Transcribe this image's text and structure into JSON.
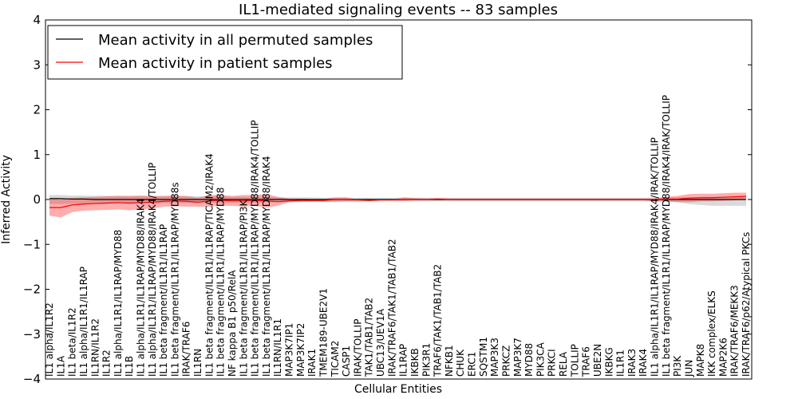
{
  "chart_data": {
    "type": "line",
    "title": "IL1-mediated signaling events -- 83 samples",
    "xlabel": "Cellular Entities",
    "ylabel": "Inferred Activity",
    "ylim": [
      -4,
      4
    ],
    "yticks": [
      -4,
      -3,
      -2,
      -1,
      0,
      1,
      2,
      3,
      4
    ],
    "legend_position": "upper-left",
    "categories": [
      "IL1 alpha/IL1R2",
      "IL1A",
      "IL1 beta/IL1R2",
      "IL1 alpha/IL1R1/IL1RAP",
      "IL1RN/IL1R2",
      "IL1R2",
      "IL1 alpha/IL1R1/IL1RAP/MYD88",
      "IL1B",
      "IL1 alpha/IL1R1/IL1RAP/MYD88/IRAK4",
      "IL1 alpha/IL1R1/IL1RAP/MYD88/IRAK4/TOLLIP",
      "IL1 beta fragment/IL1R1/IL1RAP",
      "IL1 beta fragment/IL1R1/IL1RAP/MYD88s",
      "IRAK/TRAF6",
      "IL1RN",
      "IL1 beta fragment/IL1R1/IL1RAP/TICAM2/IRAK4",
      "IL1 beta fragment/IL1R1/IL1RAP/MYD88",
      "NF kappa B1 p50/RelA",
      "IL1 beta fragment/IL1R1/IL1RAP/PI3K",
      "IL1 beta fragment/IL1R1/IL1RAP/MYD88/IRAK4/TOLLIP",
      "IL1 beta fragment/IL1R1/IL1RAP/MYD88/IRAK4",
      "IL1RN/IL1R1",
      "MAP3K7IP1",
      "MAP3K7IP2",
      "IRAK1",
      "TMEM189-UBE2V1",
      "TICAM2",
      "CASP1",
      "IRAK/TOLLIP",
      "TAK1/TAB1/TAB2",
      "UBC13/UEV1A",
      "IRAK/TRAF6/TAK1/TAB1/TAB2",
      "IL1RAP",
      "IKBKB",
      "PIK3R1",
      "TRAF6/TAK1/TAB1/TAB2",
      "NFKB1",
      "CHUK",
      "ERC1",
      "SQSTM1",
      "MAP3K3",
      "PRKCZ",
      "MAP3K7",
      "MYD88",
      "PIK3CA",
      "PRKCI",
      "RELA",
      "TOLLIP",
      "TRAF6",
      "UBE2N",
      "IKBKG",
      "IL1R1",
      "IRAK3",
      "IRAK4",
      "IL1 alpha/IL1R1/IL1RAP/MYD88/IRAK4/IRAK/TOLLIP",
      "IL1 beta fragment/IL1R1/IL1RAP/MYD88/IRAK4/IRAK/TOLLIP",
      "PI3K",
      "JUN",
      "MAPK8",
      "IKK complex/ELKS",
      "MAP2K6",
      "IRAK/TRAF6/MEKK3",
      "IRAK/TRAF6/p62/Atypical PKCs"
    ],
    "series": [
      {
        "name": "Mean activity in all permuted samples",
        "color": "#000000",
        "values": [
          0.02,
          0.02,
          0.01,
          0.01,
          0.0,
          0.0,
          0.0,
          0.0,
          0.0,
          0.0,
          0.0,
          0.0,
          0.0,
          0.0,
          0.0,
          0.0,
          0.0,
          0.0,
          0.0,
          0.0,
          0.0,
          0.0,
          0.0,
          0.0,
          0.0,
          0.0,
          0.0,
          0.0,
          0.0,
          0.0,
          0.0,
          0.0,
          0.0,
          0.0,
          0.0,
          0.0,
          0.0,
          0.0,
          0.0,
          0.0,
          0.0,
          0.0,
          0.0,
          0.0,
          0.0,
          0.0,
          0.0,
          0.0,
          0.0,
          0.0,
          0.0,
          0.0,
          0.0,
          0.0,
          0.0,
          0.0,
          0.0,
          0.0,
          0.0,
          0.0,
          0.0,
          0.0
        ],
        "band_upper": [
          0.1,
          0.1,
          0.09,
          0.09,
          0.08,
          0.08,
          0.08,
          0.07,
          0.07,
          0.07,
          0.07,
          0.07,
          0.07,
          0.07,
          0.07,
          0.07,
          0.06,
          0.06,
          0.06,
          0.06,
          0.05,
          0.05,
          0.05,
          0.05,
          0.04,
          0.04,
          0.04,
          0.04,
          0.04,
          0.04,
          0.04,
          0.04,
          0.04,
          0.04,
          0.04,
          0.04,
          0.04,
          0.04,
          0.04,
          0.04,
          0.04,
          0.04,
          0.04,
          0.04,
          0.04,
          0.04,
          0.04,
          0.04,
          0.04,
          0.04,
          0.04,
          0.04,
          0.04,
          0.05,
          0.05,
          0.05,
          0.05,
          0.05,
          0.06,
          0.06,
          0.06,
          0.06
        ],
        "band_lower": [
          -0.1,
          -0.1,
          -0.09,
          -0.09,
          -0.08,
          -0.08,
          -0.08,
          -0.08,
          -0.08,
          -0.08,
          -0.08,
          -0.08,
          -0.08,
          -0.08,
          -0.08,
          -0.08,
          -0.07,
          -0.07,
          -0.07,
          -0.07,
          -0.06,
          -0.06,
          -0.06,
          -0.05,
          -0.05,
          -0.05,
          -0.05,
          -0.05,
          -0.05,
          -0.04,
          -0.04,
          -0.04,
          -0.04,
          -0.04,
          -0.04,
          -0.04,
          -0.04,
          -0.04,
          -0.04,
          -0.04,
          -0.04,
          -0.04,
          -0.04,
          -0.04,
          -0.04,
          -0.04,
          -0.04,
          -0.04,
          -0.04,
          -0.04,
          -0.04,
          -0.04,
          -0.04,
          -0.05,
          -0.05,
          -0.06,
          -0.1,
          -0.12,
          -0.14,
          -0.14,
          -0.14,
          -0.14
        ]
      },
      {
        "name": "Mean activity in patient samples",
        "color": "#ff0000",
        "values": [
          -0.18,
          -0.18,
          -0.12,
          -0.1,
          -0.09,
          -0.08,
          -0.07,
          -0.08,
          -0.07,
          -0.06,
          -0.04,
          -0.03,
          -0.04,
          -0.06,
          -0.03,
          -0.02,
          -0.03,
          -0.03,
          -0.02,
          -0.03,
          -0.05,
          -0.03,
          -0.02,
          -0.02,
          -0.02,
          0.0,
          0.0,
          -0.01,
          -0.02,
          -0.01,
          -0.01,
          0.0,
          0.0,
          0.0,
          0.01,
          0.0,
          0.0,
          0.0,
          0.0,
          0.0,
          0.0,
          0.0,
          0.0,
          0.0,
          0.0,
          0.0,
          0.0,
          0.0,
          0.0,
          0.0,
          0.0,
          0.0,
          0.0,
          0.0,
          0.01,
          0.01,
          0.03,
          0.04,
          0.04,
          0.05,
          0.06,
          0.07
        ],
        "band_upper": [
          0.02,
          0.0,
          0.04,
          0.05,
          0.06,
          0.07,
          0.08,
          0.08,
          0.09,
          0.08,
          0.08,
          0.09,
          0.08,
          0.04,
          0.1,
          0.1,
          0.08,
          0.1,
          0.1,
          0.12,
          0.06,
          0.02,
          0.02,
          0.01,
          0.01,
          0.05,
          0.05,
          0.0,
          0.0,
          0.0,
          0.0,
          0.05,
          0.03,
          0.02,
          0.03,
          0.02,
          0.02,
          0.02,
          0.02,
          0.02,
          0.02,
          0.02,
          0.02,
          0.02,
          0.02,
          0.02,
          0.02,
          0.02,
          0.02,
          0.02,
          0.02,
          0.02,
          0.02,
          0.02,
          0.06,
          0.08,
          0.12,
          0.13,
          0.13,
          0.14,
          0.15,
          0.15
        ],
        "band_lower": [
          -0.36,
          -0.4,
          -0.28,
          -0.25,
          -0.24,
          -0.23,
          -0.22,
          -0.24,
          -0.22,
          -0.2,
          -0.16,
          -0.15,
          -0.16,
          -0.16,
          -0.16,
          -0.14,
          -0.14,
          -0.16,
          -0.14,
          -0.18,
          -0.14,
          -0.06,
          -0.05,
          -0.05,
          -0.05,
          -0.05,
          -0.04,
          -0.03,
          -0.03,
          -0.02,
          -0.02,
          -0.03,
          -0.02,
          -0.02,
          -0.02,
          -0.02,
          -0.02,
          -0.02,
          -0.02,
          -0.02,
          -0.02,
          -0.02,
          -0.02,
          -0.02,
          -0.02,
          -0.02,
          -0.02,
          -0.02,
          -0.02,
          -0.02,
          -0.02,
          -0.02,
          -0.02,
          -0.04,
          -0.04,
          -0.06,
          -0.06,
          -0.04,
          -0.04,
          -0.03,
          -0.02,
          -0.01
        ]
      }
    ]
  }
}
